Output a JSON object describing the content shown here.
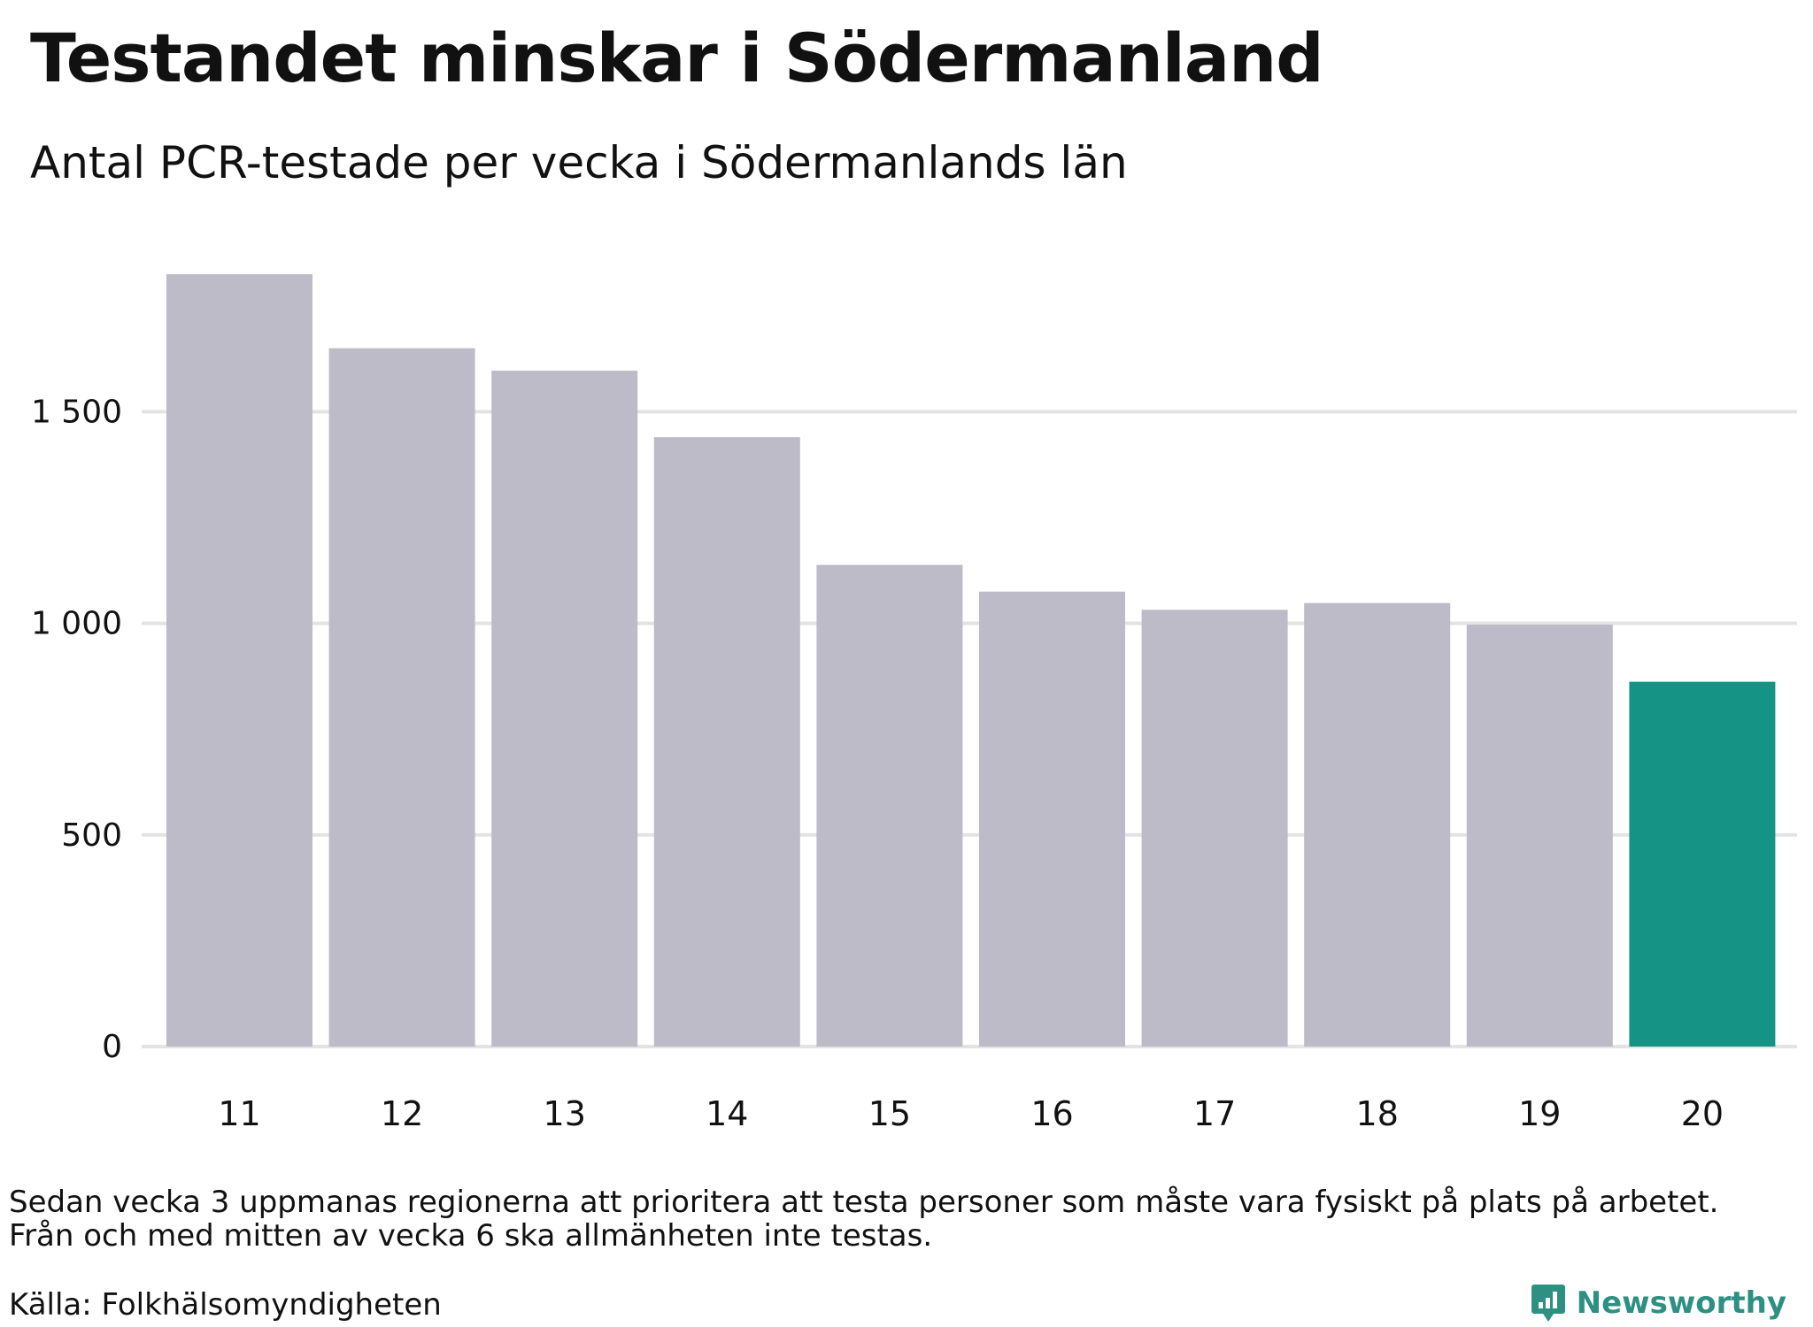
{
  "title": "Testandet minskar i Södermanland",
  "subtitle": "Antal PCR-testade per vecka i Södermanlands län",
  "chart_data": {
    "type": "bar",
    "title": "Testandet minskar i Södermanland",
    "subtitle": "Antal PCR-testade per vecka i Södermanlands län",
    "xlabel": "",
    "ylabel": "",
    "categories": [
      "11",
      "12",
      "13",
      "14",
      "15",
      "16",
      "17",
      "18",
      "19",
      "20"
    ],
    "values": [
      1825,
      1650,
      1597,
      1440,
      1138,
      1075,
      1032,
      1048,
      997,
      862
    ],
    "ylim": [
      0,
      1850
    ],
    "yticks": [
      0,
      500,
      1000,
      1500
    ],
    "ytick_labels": [
      "0",
      "500",
      "1 000",
      "1 500"
    ],
    "grid": true,
    "bar_color": "#bcbbc7",
    "highlight_color": "#159486",
    "highlight_index": 9
  },
  "footnote": {
    "line1": "Sedan vecka 3 uppmanas regionerna att prioritera att testa personer som måste vara fysiskt på plats på arbetet.",
    "line2": "Från och med mitten av vecka 6 ska allmänheten inte testas."
  },
  "source": "Källa: Folkhälsomyndigheten",
  "brand": {
    "name": "Newsworthy",
    "icon": "newsworthy-logo-icon",
    "color": "#2e8f83"
  },
  "colors": {
    "gridline": "#e3e3e3",
    "text": "#111111"
  }
}
